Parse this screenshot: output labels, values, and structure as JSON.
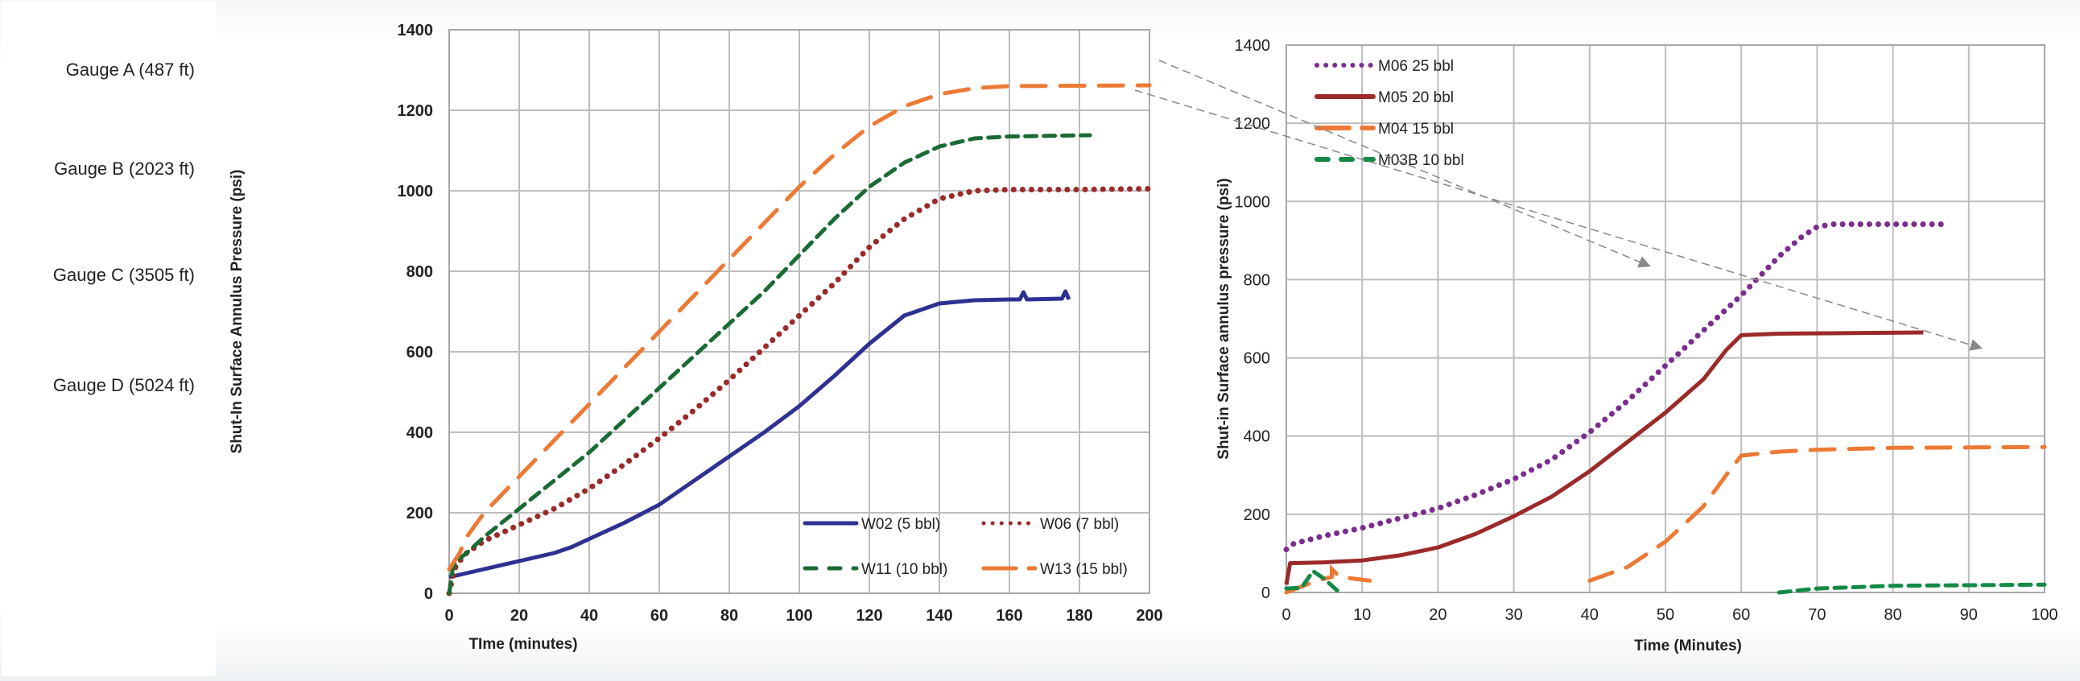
{
  "well_diagram": {
    "gauges": [
      {
        "label": "Gauge A (487 ft)",
        "depth_ft": 487
      },
      {
        "label": "Gauge B (2023 ft)",
        "depth_ft": 2023
      },
      {
        "label": "Gauge C (3505 ft)",
        "depth_ft": 3505
      },
      {
        "label": "Gauge D (5024 ft)",
        "depth_ft": 5024
      }
    ]
  },
  "chart_data": [
    {
      "type": "line",
      "title": "",
      "xlabel": "TIme (minutes)",
      "ylabel": "Shut-In Surface Annulus Pressure (psi)",
      "xlim": [
        0,
        200
      ],
      "ylim": [
        0,
        1400
      ],
      "xticks": [
        "0",
        "20",
        "40",
        "60",
        "80",
        "100",
        "120",
        "140",
        "160",
        "180",
        "200"
      ],
      "yticks": [
        "0",
        "200",
        "400",
        "600",
        "800",
        "1000",
        "1200",
        "1400"
      ],
      "grid": true,
      "legend_position": "bottom-right",
      "series": [
        {
          "name": "W02 (5 bbl)",
          "color": "#2e3192",
          "style": "solid",
          "x": [
            0,
            10,
            20,
            30,
            35,
            40,
            50,
            60,
            70,
            80,
            90,
            100,
            110,
            120,
            130,
            140,
            150,
            160,
            163,
            164,
            165,
            175,
            176,
            177
          ],
          "y": [
            40,
            60,
            80,
            100,
            115,
            135,
            175,
            220,
            280,
            340,
            400,
            465,
            540,
            620,
            690,
            720,
            728,
            730,
            730,
            748,
            730,
            732,
            750,
            730
          ]
        },
        {
          "name": "W06 (7 bbl)",
          "color": "#9b2a2a",
          "style": "dotted",
          "x": [
            0,
            1,
            2,
            5,
            10,
            20,
            30,
            40,
            50,
            60,
            70,
            80,
            90,
            100,
            110,
            120,
            130,
            140,
            150,
            160,
            180,
            200
          ],
          "y": [
            0,
            40,
            70,
            100,
            130,
            170,
            210,
            260,
            320,
            385,
            455,
            530,
            610,
            690,
            770,
            860,
            930,
            980,
            1000,
            1003,
            1003,
            1005
          ]
        },
        {
          "name": "W11 (10 bbl)",
          "color": "#1a6b35",
          "style": "dashed",
          "x": [
            0,
            1,
            2,
            5,
            10,
            20,
            30,
            40,
            50,
            60,
            70,
            80,
            90,
            100,
            110,
            120,
            130,
            140,
            150,
            160,
            183
          ],
          "y": [
            0,
            60,
            80,
            100,
            140,
            210,
            280,
            350,
            430,
            510,
            590,
            670,
            750,
            840,
            930,
            1010,
            1070,
            1110,
            1130,
            1135,
            1138
          ]
        },
        {
          "name": "W13 (15 bbl)",
          "color": "#ec7a35",
          "style": "longdash",
          "x": [
            0,
            3,
            5,
            10,
            20,
            30,
            40,
            50,
            60,
            70,
            80,
            90,
            100,
            110,
            120,
            130,
            140,
            150,
            160,
            200
          ],
          "y": [
            60,
            100,
            140,
            200,
            290,
            380,
            470,
            560,
            650,
            740,
            830,
            920,
            1010,
            1090,
            1160,
            1210,
            1240,
            1255,
            1260,
            1262
          ]
        }
      ]
    },
    {
      "type": "line",
      "title": "",
      "xlabel": "Time (Minutes)",
      "ylabel": "Shut-in Surface annulus pressure (psi)",
      "xlim": [
        0,
        100
      ],
      "ylim": [
        0,
        1400
      ],
      "xticks": [
        "0",
        "10",
        "20",
        "30",
        "40",
        "50",
        "60",
        "70",
        "80",
        "90",
        "100"
      ],
      "yticks": [
        "0",
        "200",
        "400",
        "600",
        "800",
        "1000",
        "1200",
        "1400"
      ],
      "grid": true,
      "legend_position": "top-left",
      "series": [
        {
          "name": "M06 25 bbl",
          "color": "#7b2d8e",
          "style": "dotted",
          "x": [
            0,
            1,
            5,
            10,
            15,
            20,
            25,
            30,
            35,
            40,
            45,
            50,
            55,
            60,
            65,
            68,
            70,
            72,
            87
          ],
          "y": [
            110,
            125,
            145,
            165,
            190,
            215,
            250,
            290,
            340,
            410,
            490,
            580,
            670,
            760,
            860,
            910,
            935,
            942,
            942
          ]
        },
        {
          "name": "M05 20 bbl",
          "color": "#9b2a2a",
          "style": "solid",
          "x": [
            0,
            0.5,
            5,
            10,
            15,
            20,
            25,
            30,
            35,
            40,
            45,
            50,
            55,
            58,
            60,
            65,
            84
          ],
          "y": [
            20,
            75,
            77,
            82,
            95,
            115,
            150,
            195,
            245,
            310,
            385,
            460,
            545,
            620,
            658,
            662,
            665
          ]
        },
        {
          "name": "M04 15 bbl",
          "color": "#ec7a35",
          "style": "longdash",
          "x": [
            40,
            45,
            50,
            55,
            58,
            60,
            65,
            70,
            80,
            100
          ],
          "y": [
            30,
            65,
            130,
            220,
            300,
            350,
            360,
            365,
            370,
            372
          ]
        },
        {
          "name": "M03B 10 bbl",
          "color": "#138a45",
          "style": "dashed",
          "x": [
            65,
            70,
            80,
            100
          ],
          "y": [
            0,
            10,
            17,
            20
          ]
        }
      ],
      "early_fragments": [
        {
          "series": "M04 15 bbl",
          "x": [
            0,
            4,
            6,
            6,
            7,
            11
          ],
          "y": [
            0,
            30,
            40,
            60,
            40,
            30
          ]
        },
        {
          "series": "M03B 10 bbl",
          "x": [
            0,
            2,
            3,
            3.5,
            5,
            7
          ],
          "y": [
            10,
            12,
            40,
            55,
            35,
            0
          ]
        }
      ]
    }
  ]
}
